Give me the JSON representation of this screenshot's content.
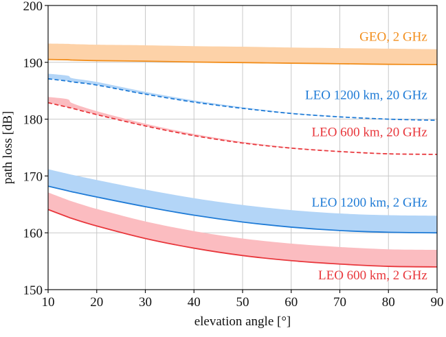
{
  "chart_data": {
    "type": "line",
    "title": "",
    "xlabel": "elevation angle [°]",
    "ylabel": "path loss [dB]",
    "xlim": [
      10,
      90
    ],
    "ylim": [
      150,
      200
    ],
    "xticks": [
      10,
      20,
      30,
      40,
      50,
      60,
      70,
      80,
      90
    ],
    "yticks": [
      150,
      160,
      170,
      180,
      190,
      200
    ],
    "xtick_labels": [
      "10",
      "20",
      "30",
      "40",
      "50",
      "60",
      "70",
      "80",
      "90"
    ],
    "ytick_labels": [
      "150",
      "160",
      "170",
      "180",
      "190",
      "200"
    ],
    "grid": true,
    "legend": "inline labels at right",
    "x": [
      10,
      14,
      15,
      20,
      30,
      40,
      50,
      60,
      70,
      80,
      90
    ],
    "series": [
      {
        "name": "GEO, 2 GHz",
        "color": "#f28e1c",
        "band_color": "#fdd2a8",
        "style": "solid",
        "values": [
          190.5,
          190.45,
          190.4,
          190.3,
          190.2,
          190.05,
          189.95,
          189.85,
          189.75,
          189.65,
          189.6
        ],
        "band_top": [
          193.3,
          193.25,
          193.2,
          193.1,
          193.0,
          192.85,
          192.75,
          192.6,
          192.5,
          192.4,
          192.3
        ]
      },
      {
        "name": "LEO 1200 km, 20 GHz",
        "color": "#1f7bd6",
        "band_color": "#b3d5f7",
        "style": "dashed",
        "values": [
          187.1,
          186.7,
          186.55,
          186.0,
          184.4,
          183.0,
          181.9,
          181.0,
          180.4,
          180.0,
          179.8
        ],
        "band_top": [
          188.0,
          187.65,
          187.2,
          186.55,
          184.8,
          183.3,
          182.1,
          181.1,
          180.45,
          180.05,
          179.8
        ]
      },
      {
        "name": "LEO 600 km, 20 GHz",
        "color": "#e8373c",
        "band_color": "#fbbcc0",
        "style": "dashed",
        "values": [
          182.9,
          182.1,
          181.9,
          180.8,
          178.8,
          177.1,
          175.8,
          174.9,
          174.3,
          173.9,
          173.8
        ],
        "band_top": [
          183.9,
          183.5,
          182.8,
          181.4,
          179.2,
          177.4,
          176.0,
          175.0,
          174.35,
          173.95,
          173.8
        ]
      },
      {
        "name": "LEO 1200 km, 2 GHz",
        "color": "#1f7bd6",
        "band_color": "#b3d5f7",
        "style": "solid",
        "values": [
          168.2,
          167.4,
          167.2,
          166.3,
          164.6,
          163.1,
          161.9,
          161.0,
          160.4,
          160.1,
          160.0
        ],
        "band_top": [
          171.2,
          170.4,
          170.2,
          169.3,
          167.6,
          166.1,
          164.9,
          164.0,
          163.4,
          163.1,
          163.0
        ]
      },
      {
        "name": "LEO 600 km, 2 GHz",
        "color": "#e8373c",
        "band_color": "#fbbcc0",
        "style": "solid",
        "values": [
          164.1,
          162.8,
          162.5,
          161.2,
          159.0,
          157.3,
          156.0,
          155.1,
          154.5,
          154.1,
          154.0
        ],
        "band_top": [
          167.1,
          165.8,
          165.5,
          164.2,
          162.0,
          160.3,
          159.0,
          158.1,
          157.5,
          157.1,
          157.0
        ]
      }
    ],
    "annotations": [
      {
        "text": "GEO, 2 GHz",
        "x": 88,
        "y": 193.8,
        "color": "#f28e1c"
      },
      {
        "text": "LEO 1200 km, 20 GHz",
        "x": 88,
        "y": 183.5,
        "color": "#1f7bd6"
      },
      {
        "text": "LEO 600 km, 20 GHz",
        "x": 88,
        "y": 177.0,
        "color": "#e8373c"
      },
      {
        "text": "LEO 1200 km, 2 GHz",
        "x": 88,
        "y": 164.6,
        "color": "#1f7bd6"
      },
      {
        "text": "LEO 600 km, 2 GHz",
        "x": 88,
        "y": 151.8,
        "color": "#e8373c"
      }
    ]
  }
}
